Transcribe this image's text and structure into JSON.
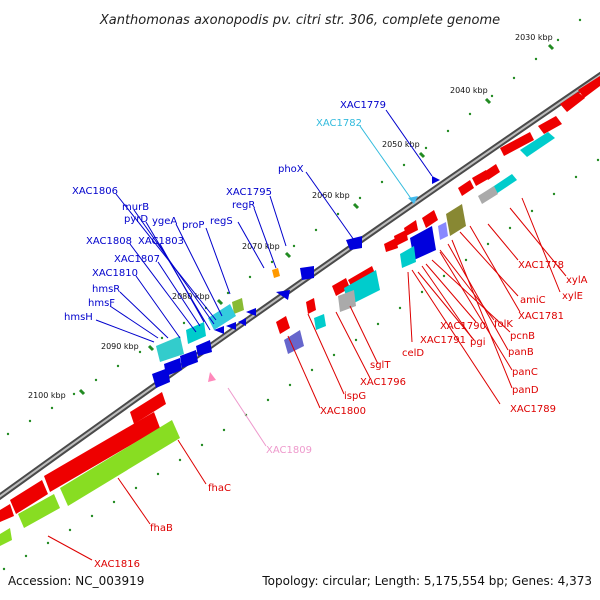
{
  "title": "Xanthomonas axonopodis pv. citri str. 306, complete genome",
  "accession": "Accession: NC_003919",
  "summary": "Topology: circular; Length: 5,175,554 bp; Genes: 4,373",
  "scale_ticks": [
    "2030 kbp",
    "2040 kbp",
    "2050 kbp",
    "2060 kbp",
    "2070 kbp",
    "2080 kbp",
    "2090 kbp",
    "2100 kbp"
  ],
  "colors": {
    "backbone": "#7f7f7f",
    "forward_label": "#0000cc",
    "reverse_label": "#dd0000",
    "cyan_label": "#33bbdd",
    "pink_label": "#ee99cc",
    "tick": "#228b22"
  },
  "forward_labels": [
    "XAC1779",
    "XAC1782",
    "phoX",
    "XAC1795",
    "regR",
    "regS",
    "XAC1806",
    "murB",
    "pyrD",
    "ygeA",
    "proP",
    "XAC1808",
    "XAC1803",
    "XAC1807",
    "XAC1810",
    "hmsR",
    "hmsF",
    "hmsH"
  ],
  "reverse_labels": [
    "XAC1778",
    "xylA",
    "xylE",
    "amiC",
    "XAC1781",
    "folK",
    "pcnB",
    "XAC1790",
    "panB",
    "XAC1791",
    "pgi",
    "panC",
    "celD",
    "panD",
    "sglT",
    "XAC1789",
    "XAC1796",
    "ispG",
    "XAC1800",
    "XAC1809",
    "fhaC",
    "fhaB",
    "XAC1816"
  ]
}
